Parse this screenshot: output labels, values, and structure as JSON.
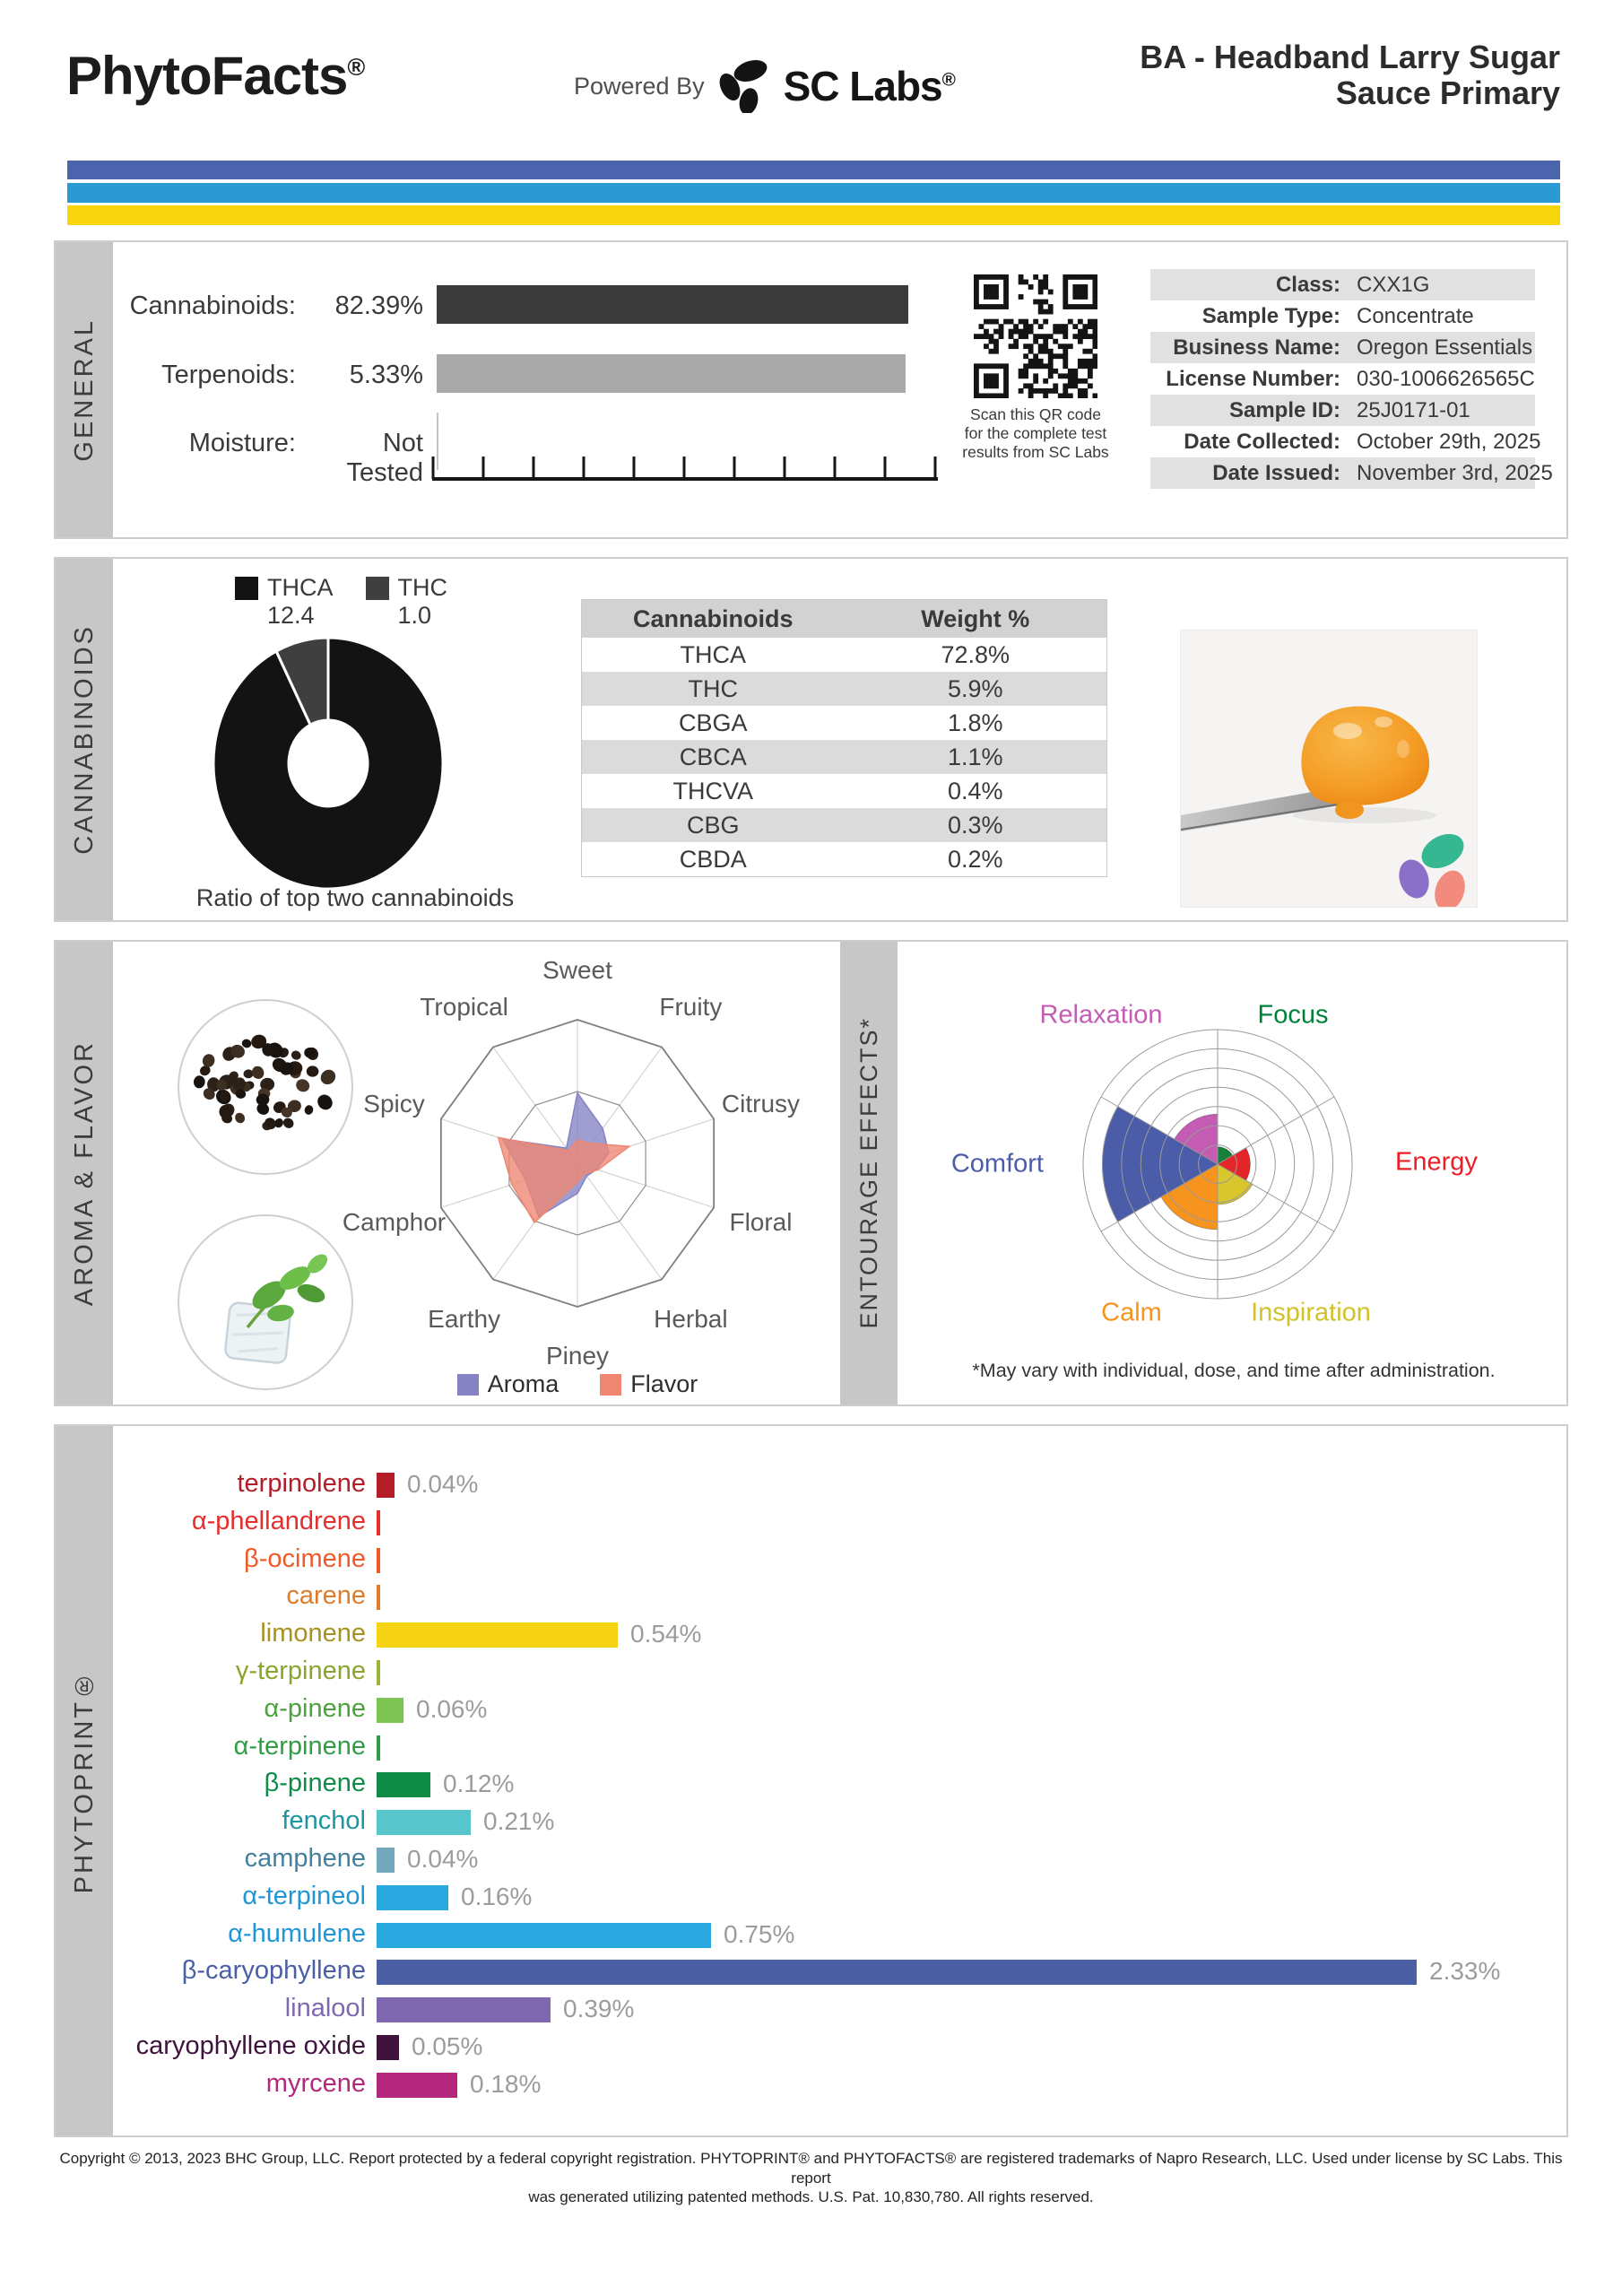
{
  "header": {
    "brand": "PhytoFacts",
    "brand_reg": "®",
    "powered_by": "Powered By",
    "sclabs": "SC Labs",
    "sclabs_reg": "®",
    "title_line1": "BA - Headband Larry Sugar",
    "title_line2": "Sauce Primary",
    "stripe_colors": [
      "#4c63ae",
      "#2b9ad3",
      "#f8d60e"
    ]
  },
  "sections": {
    "general": {
      "label": "GENERAL",
      "rows": [
        {
          "label": "Cannabinoids:",
          "value": "82.39%"
        },
        {
          "label": "Terpenoids:",
          "value": "5.33%"
        },
        {
          "label": "Moisture:",
          "value": "Not Tested"
        }
      ],
      "qr_caption": [
        "Scan this QR code",
        "for the complete test",
        "results from SC Labs"
      ],
      "info": [
        {
          "label": "Class:",
          "value": "CXX1G"
        },
        {
          "label": "Sample Type:",
          "value": "Concentrate"
        },
        {
          "label": "Business Name:",
          "value": "Oregon Essentials"
        },
        {
          "label": "License Number:",
          "value": "030-1006626565C"
        },
        {
          "label": "Sample ID:",
          "value": "25J0171-01"
        },
        {
          "label": "Date Collected:",
          "value": "October 29th, 2025"
        },
        {
          "label": "Date Issued:",
          "value": "November 3rd, 2025"
        }
      ]
    },
    "cannabinoids": {
      "label": "CANNABINOIDS",
      "caption": "Ratio of top two cannabinoids"
    },
    "aroma": {
      "label": "AROMA & FLAVOR"
    },
    "entourage": {
      "label": "ENTOURAGE EFFECTS*",
      "footnote": "*May vary with individual, dose, and time after administration."
    },
    "phytoprint": {
      "label": "PHYTOPRINT®"
    }
  },
  "chart_data": [
    {
      "id": "general-levels",
      "type": "bar",
      "orientation": "horizontal",
      "categories": [
        "Cannabinoids",
        "Terpenoids",
        "Moisture"
      ],
      "values": [
        82.39,
        5.33,
        null
      ],
      "value_labels": [
        "82.39%",
        "5.33%",
        "Not Tested"
      ],
      "colors": [
        "#3b3b3b",
        "#a9a9a9",
        null
      ],
      "axis_ticks": 11
    },
    {
      "id": "cannabinoid-ratio",
      "type": "pie",
      "donut": true,
      "title": "Ratio of top two cannabinoids",
      "categories": [
        "THCA",
        "THC"
      ],
      "values": [
        12.4,
        1.0
      ],
      "value_labels": [
        "12.4",
        "1.0"
      ],
      "colors": [
        "#131313",
        "#3f3f3f"
      ]
    },
    {
      "id": "cannabinoid-weights",
      "type": "table",
      "headers": [
        "Cannabinoids",
        "Weight %"
      ],
      "rows": [
        [
          "THCA",
          "72.8%"
        ],
        [
          "THC",
          "5.9%"
        ],
        [
          "CBGA",
          "1.8%"
        ],
        [
          "CBCA",
          "1.1%"
        ],
        [
          "THCVA",
          "0.4%"
        ],
        [
          "CBG",
          "0.3%"
        ],
        [
          "CBDA",
          "0.2%"
        ]
      ]
    },
    {
      "id": "aroma-flavor",
      "type": "radar",
      "categories": [
        "Sweet",
        "Fruity",
        "Citrusy",
        "Floral",
        "Herbal",
        "Piney",
        "Earthy",
        "Camphor",
        "Spicy",
        "Tropical"
      ],
      "scale_max": 1,
      "rings": [
        0.5,
        1
      ],
      "series": [
        {
          "name": "Aroma",
          "color": "#8583c3",
          "values": [
            0.49,
            0.3,
            0.23,
            0.14,
            0.11,
            0.21,
            0.46,
            0.38,
            0.55,
            0.13
          ]
        },
        {
          "name": "Flavor",
          "color": "#ee8672",
          "values": [
            0.16,
            0.17,
            0.38,
            0.15,
            0.09,
            0.13,
            0.51,
            0.48,
            0.58,
            0.11
          ]
        }
      ]
    },
    {
      "id": "entourage",
      "type": "polar",
      "rings": 7,
      "max": 7,
      "items": [
        {
          "name": "Focus",
          "value": 0.9,
          "color": "#168039",
          "label_color": "#00813a"
        },
        {
          "name": "Energy",
          "value": 1.7,
          "color": "#e52629",
          "label_color": "#ee1c24"
        },
        {
          "name": "Inspiration",
          "value": 2.1,
          "color": "#d8c62c",
          "label_color": "#d2c22a"
        },
        {
          "name": "Calm",
          "value": 3.4,
          "color": "#f7941e",
          "label_color": "#f7941e"
        },
        {
          "name": "Comfort",
          "value": 6.0,
          "color": "#4b5ca9",
          "label_color": "#4c5da8"
        },
        {
          "name": "Relaxation",
          "value": 2.6,
          "color": "#c45cb4",
          "label_color": "#c45cb4"
        }
      ]
    },
    {
      "id": "phytoprint",
      "type": "bar",
      "orientation": "horizontal",
      "unit": "%",
      "items": [
        {
          "name": "terpinolene",
          "value": 0.04,
          "label": "0.04%",
          "color": "#b21d28",
          "label_color": "#b21d28"
        },
        {
          "name": "α-phellandrene",
          "value": null,
          "label": "",
          "color": "#e62e2e",
          "label_color": "#e62e2e"
        },
        {
          "name": "β-ocimene",
          "value": null,
          "label": "",
          "color": "#ef5a28",
          "label_color": "#ef5a28"
        },
        {
          "name": "carene",
          "value": null,
          "label": "",
          "color": "#e07b28",
          "label_color": "#e07b28"
        },
        {
          "name": "limonene",
          "value": 0.54,
          "label": "0.54%",
          "color": "#f7d413",
          "label_color": "#a8921d"
        },
        {
          "name": "γ-terpinene",
          "value": null,
          "label": "",
          "color": "#9ab636",
          "label_color": "#8aa42c"
        },
        {
          "name": "α-pinene",
          "value": 0.06,
          "label": "0.06%",
          "color": "#7dc455",
          "label_color": "#4da23f"
        },
        {
          "name": "α-terpinene",
          "value": null,
          "label": "",
          "color": "#2f9e44",
          "label_color": "#2f9e44"
        },
        {
          "name": "β-pinene",
          "value": 0.12,
          "label": "0.12%",
          "color": "#0e8c45",
          "label_color": "#0e8c45"
        },
        {
          "name": "fenchol",
          "value": 0.21,
          "label": "0.21%",
          "color": "#57c5cc",
          "label_color": "#1e96a0"
        },
        {
          "name": "camphene",
          "value": 0.04,
          "label": "0.04%",
          "color": "#74a9bd",
          "label_color": "#46809f"
        },
        {
          "name": "α-terpineol",
          "value": 0.16,
          "label": "0.16%",
          "color": "#29a9e0",
          "label_color": "#2196d6"
        },
        {
          "name": "α-humulene",
          "value": 0.75,
          "label": "0.75%",
          "color": "#29a9e0",
          "label_color": "#2196d6"
        },
        {
          "name": "β-caryophyllene",
          "value": 2.33,
          "label": "2.33%",
          "color": "#4b5fa5",
          "label_color": "#4b5fa5"
        },
        {
          "name": "linalool",
          "value": 0.39,
          "label": "0.39%",
          "color": "#7f68b0",
          "label_color": "#7f68b0"
        },
        {
          "name": "caryophyllene oxide",
          "value": 0.05,
          "label": "0.05%",
          "color": "#40133d",
          "label_color": "#40133d"
        },
        {
          "name": "myrcene",
          "value": 0.18,
          "label": "0.18%",
          "color": "#b3277d",
          "label_color": "#b3277d"
        }
      ]
    }
  ],
  "footer": {
    "line1": "Copyright © 2013, 2023 BHC Group, LLC. Report protected by a federal copyright registration. PHYTOPRINT® and PHYTOFACTS® are registered trademarks of Napro Research, LLC. Used under license by SC Labs. This report",
    "line2": "was generated utilizing patented methods. U.S. Pat. 10,830,780. All rights reserved."
  }
}
